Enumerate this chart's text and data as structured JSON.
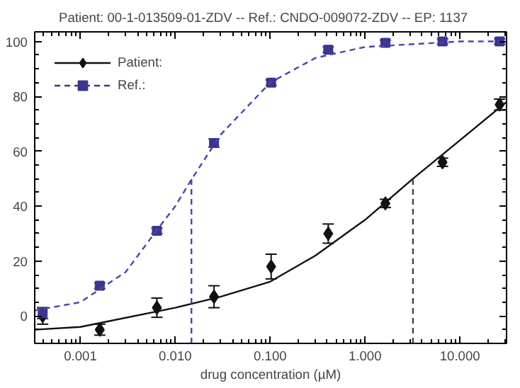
{
  "chart_data": {
    "type": "scatter",
    "title": "Patient: 00-1-013509-01-ZDV  --  Ref.: CNDO-009072-ZDV  --  EP: 1137",
    "xlabel": "drug concentration (µM)",
    "log": "x",
    "grid": false,
    "legend": "top left",
    "xlim": [
      0.00033,
      31
    ],
    "ylim": [
      -10,
      103.5
    ],
    "xticks": [
      {
        "value": 0.001,
        "label": "0.001"
      },
      {
        "value": 0.01,
        "label": "0.010"
      },
      {
        "value": 0.1,
        "label": "0.100"
      },
      {
        "value": 1,
        "label": "1.000"
      },
      {
        "value": 10,
        "label": "10.000"
      }
    ],
    "yticks": [
      0,
      20,
      40,
      60,
      80,
      100
    ],
    "series": [
      {
        "name": "Patient:",
        "marker": "diamond",
        "color": "#111111",
        "x": [
          0.0004,
          0.0016,
          0.0064,
          0.0256,
          0.1024,
          0.4096,
          1.6384,
          6.5536,
          26.2144
        ],
        "values": [
          0,
          -5,
          3,
          7,
          18,
          30,
          41,
          56,
          77
        ],
        "errors": [
          3,
          2,
          3.5,
          4,
          4.5,
          3.5,
          1.5,
          1.5,
          2
        ]
      },
      {
        "name": "Ref.:",
        "marker": "square",
        "color": "#3b3590",
        "x": [
          0.0004,
          0.0016,
          0.0064,
          0.0256,
          0.1024,
          0.4096,
          1.6384,
          6.5536,
          26.2144
        ],
        "values": [
          1,
          11,
          31,
          63,
          85,
          97,
          99.5,
          100,
          100
        ],
        "errors": [
          2,
          1,
          1,
          1.5,
          1,
          1,
          1,
          1,
          1
        ]
      },
      {
        "type": "line",
        "line_style": "solid",
        "color": "#111111",
        "x": [
          0.00033,
          0.001,
          0.01,
          0.03,
          0.1,
          0.3,
          1,
          3.2,
          10,
          31
        ],
        "values": [
          -5,
          -4,
          3,
          7,
          12.5,
          22,
          35,
          50,
          64,
          78
        ]
      },
      {
        "type": "line",
        "line_style": "dashed",
        "color": "#4a44b0",
        "x": [
          0.00033,
          0.001,
          0.003,
          0.006,
          0.01,
          0.015,
          0.03,
          0.1,
          0.3,
          1,
          10,
          31
        ],
        "values": [
          2,
          5,
          16,
          30,
          40,
          50,
          66,
          85,
          94,
          98,
          100,
          100
        ]
      },
      {
        "type": "line",
        "line_style": "dashed",
        "color": "#4a44b0",
        "x": [
          0.0148,
          0.0148
        ],
        "values": [
          -10,
          50
        ]
      },
      {
        "type": "line",
        "line_style": "dashed",
        "color": "#444444",
        "x": [
          3.2,
          3.2
        ],
        "values": [
          -10,
          50
        ]
      }
    ]
  }
}
